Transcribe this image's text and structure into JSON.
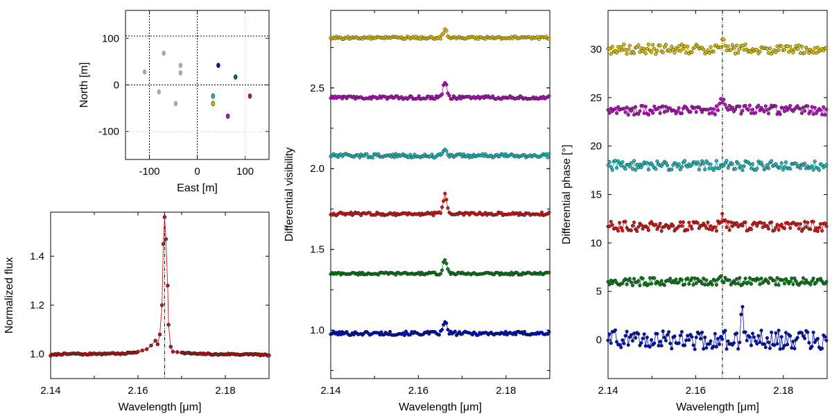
{
  "chart_data": [
    {
      "id": "uv_map",
      "type": "scatter",
      "xlabel": "East [m]",
      "ylabel": "North [m]",
      "xlim": [
        -150,
        150
      ],
      "ylim": [
        -160,
        160
      ],
      "xticks": [
        -100,
        0,
        100
      ],
      "yticks": [
        -100,
        0,
        100
      ],
      "xticklabels": [
        "-100",
        "0",
        "100"
      ],
      "yticklabels": [
        "-100",
        "0",
        "100"
      ],
      "grid": true,
      "reference_lines": {
        "vertical_x": [
          -100,
          0
        ],
        "horizontal_y": [
          0,
          105
        ]
      },
      "series": [
        {
          "color": "#aaaaaa",
          "points": [
            [
              -110,
              28
            ],
            [
              -70,
              68
            ],
            [
              -35,
              42
            ],
            [
              -35,
              26
            ],
            [
              -80,
              -15
            ],
            [
              -45,
              -40
            ]
          ]
        },
        {
          "color": "#0010b8",
          "points": [
            [
              44,
              42
            ]
          ]
        },
        {
          "color": "#0a7a1a",
          "points": [
            [
              80,
              17
            ]
          ]
        },
        {
          "color": "#20b8b8",
          "points": [
            [
              33,
              -24
            ]
          ]
        },
        {
          "color": "#d8c000",
          "points": [
            [
              33,
              -40
            ]
          ]
        },
        {
          "color": "#d01818",
          "points": [
            [
              110,
              -24
            ]
          ]
        },
        {
          "color": "#b010b8",
          "points": [
            [
              64,
              -67
            ]
          ]
        }
      ]
    },
    {
      "id": "flux",
      "type": "line",
      "xlabel": "Wavelength [μm]",
      "ylabel": "Normalized flux",
      "xlim": [
        2.14,
        2.19
      ],
      "ylim": [
        0.9,
        1.58
      ],
      "xticks": [
        2.14,
        2.16,
        2.18
      ],
      "yticks": [
        1.0,
        1.2,
        1.4
      ],
      "xticklabels": [
        "2.14",
        "2.16",
        "2.18"
      ],
      "yticklabels": [
        "1.0",
        "1.2",
        "1.4"
      ],
      "reference_line_x": 2.1661,
      "series": [
        {
          "color": "#c81818",
          "x": [
            2.14,
            2.142,
            2.144,
            2.146,
            2.148,
            2.15,
            2.152,
            2.154,
            2.156,
            2.158,
            2.16,
            2.161,
            2.162,
            2.163,
            2.164,
            2.1645,
            2.165,
            2.1655,
            2.1658,
            2.1661,
            2.1664,
            2.1668,
            2.167,
            2.1675,
            2.168,
            2.169,
            2.17,
            2.172,
            2.174,
            2.176,
            2.178,
            2.18,
            2.182,
            2.184,
            2.186,
            2.188,
            2.19
          ],
          "y": [
            0.995,
            1.0,
            1.0,
            1.002,
            0.998,
            1.003,
            1.0,
            1.004,
            1.0,
            1.005,
            1.01,
            1.015,
            1.02,
            1.035,
            1.055,
            1.04,
            1.08,
            1.2,
            1.45,
            1.56,
            1.47,
            1.28,
            1.12,
            1.03,
            1.01,
            1.008,
            1.005,
            1.003,
            1.0,
            1.001,
            0.998,
            1.0,
            1.0,
            0.998,
            1.0,
            0.997,
            0.995
          ]
        }
      ]
    },
    {
      "id": "visibility",
      "type": "line",
      "xlabel": "Wavelength [μm]",
      "ylabel": "Differential visibility",
      "xlim": [
        2.14,
        2.19
      ],
      "ylim": [
        0.7,
        2.98
      ],
      "xticks": [
        2.14,
        2.16,
        2.18
      ],
      "yticks": [
        1.0,
        1.5,
        2.0,
        2.5
      ],
      "xticklabels": [
        "2.14",
        "2.16",
        "2.18"
      ],
      "yticklabels": [
        "1.0",
        "1.5",
        "2.0",
        "2.5"
      ],
      "series": [
        {
          "color": "#0010b8",
          "baseline": 0.98,
          "peak": 0.07,
          "noise": 0.012
        },
        {
          "color": "#0a7a1a",
          "baseline": 1.35,
          "peak": 0.09,
          "noise": 0.008
        },
        {
          "color": "#d01818",
          "baseline": 1.72,
          "peak": 0.12,
          "noise": 0.01
        },
        {
          "color": "#20b8b8",
          "baseline": 2.08,
          "peak": 0.04,
          "noise": 0.012
        },
        {
          "color": "#b010b8",
          "baseline": 2.44,
          "peak": 0.1,
          "noise": 0.01
        },
        {
          "color": "#d8c000",
          "baseline": 2.81,
          "peak": 0.05,
          "noise": 0.008
        }
      ]
    },
    {
      "id": "phase",
      "type": "line",
      "xlabel": "Wavelength [μm]",
      "ylabel": "Differential phase [°]",
      "xlim": [
        2.14,
        2.19
      ],
      "ylim": [
        -4,
        34
      ],
      "xticks": [
        2.14,
        2.16,
        2.18
      ],
      "yticks": [
        0,
        5,
        10,
        15,
        20,
        25,
        30
      ],
      "xticklabels": [
        "2.14",
        "2.16",
        "2.18"
      ],
      "yticklabels": [
        "0",
        "5",
        "10",
        "15",
        "20",
        "25",
        "30"
      ],
      "reference_line_x": 2.1661,
      "series": [
        {
          "color": "#0010b8",
          "baseline": 0,
          "peak": 0,
          "noise": 1.0
        },
        {
          "color": "#0a7a1a",
          "baseline": 6,
          "peak": 0.3,
          "noise": 0.4
        },
        {
          "color": "#d01818",
          "baseline": 11.7,
          "peak": 1.0,
          "noise": 0.5
        },
        {
          "color": "#20b8b8",
          "baseline": 18,
          "peak": 0,
          "noise": 0.5
        },
        {
          "color": "#b010b8",
          "baseline": 23.7,
          "peak": 1.2,
          "noise": 0.5
        },
        {
          "color": "#d8c000",
          "baseline": 30,
          "peak": 0.8,
          "noise": 0.5
        }
      ]
    }
  ]
}
